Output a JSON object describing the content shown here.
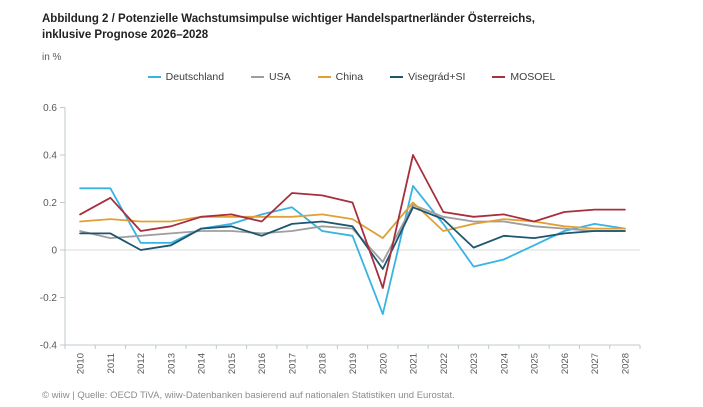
{
  "header": {
    "title": "Abbildung 2 / Potenzielle Wachstumsimpulse wichtiger Handelspartnerländer Österreichs, inklusive Prognose 2026–2028",
    "subtitle": "in %"
  },
  "footer": {
    "source": "© wiiw | Quelle: OECD TiVA, wiiw-Datenbanken basierend auf nationalen Statistiken und Eurostat."
  },
  "colors": {
    "axis": "#bfc8cf",
    "zero_gridline": "#d9d9d9",
    "tick_label": "#595959",
    "title_text": "#222222",
    "footer_text": "#8c8c8c"
  },
  "chart_data": {
    "type": "line",
    "title": "Abbildung 2 / Potenzielle Wachstumsimpulse wichtiger Handelspartnerländer Österreichs, inklusive Prognose 2026–2028",
    "ylabel": "in %",
    "xlabel": "",
    "ylim": [
      -0.4,
      0.6
    ],
    "ytick_step": 0.2,
    "grid": "horizontal zero line only",
    "legend_position": "top",
    "x_tick_rotation": -90,
    "categories": [
      "2010",
      "2011",
      "2012",
      "2013",
      "2014",
      "2015",
      "2016",
      "2017",
      "2018",
      "2019",
      "2020",
      "2021",
      "2022",
      "2023",
      "2024",
      "2025",
      "2026",
      "2027",
      "2028"
    ],
    "series": [
      {
        "name": "Deutschland",
        "color": "#38b3e4",
        "values": [
          0.26,
          0.26,
          0.03,
          0.03,
          0.09,
          0.11,
          0.15,
          0.18,
          0.08,
          0.06,
          -0.27,
          0.27,
          0.11,
          -0.07,
          -0.04,
          0.02,
          0.08,
          0.11,
          0.09
        ]
      },
      {
        "name": "USA",
        "color": "#9e9e9e",
        "values": [
          0.08,
          0.05,
          0.06,
          0.07,
          0.08,
          0.08,
          0.07,
          0.08,
          0.1,
          0.09,
          -0.05,
          0.19,
          0.14,
          0.12,
          0.12,
          0.1,
          0.09,
          0.08,
          0.08
        ]
      },
      {
        "name": "China",
        "color": "#e0a036",
        "values": [
          0.12,
          0.13,
          0.12,
          0.12,
          0.14,
          0.14,
          0.14,
          0.14,
          0.15,
          0.13,
          0.05,
          0.2,
          0.08,
          0.11,
          0.13,
          0.12,
          0.1,
          0.09,
          0.09
        ]
      },
      {
        "name": "Visegrád+SI",
        "color": "#1c5670",
        "values": [
          0.07,
          0.07,
          0.0,
          0.02,
          0.09,
          0.1,
          0.06,
          0.11,
          0.12,
          0.1,
          -0.08,
          0.18,
          0.13,
          0.01,
          0.06,
          0.05,
          0.07,
          0.08,
          0.08
        ]
      },
      {
        "name": "MOSOEL",
        "color": "#a82f3d",
        "values": [
          0.15,
          0.22,
          0.08,
          0.1,
          0.14,
          0.15,
          0.12,
          0.24,
          0.23,
          0.2,
          -0.16,
          0.4,
          0.16,
          0.14,
          0.15,
          0.12,
          0.16,
          0.17,
          0.17
        ]
      }
    ]
  }
}
